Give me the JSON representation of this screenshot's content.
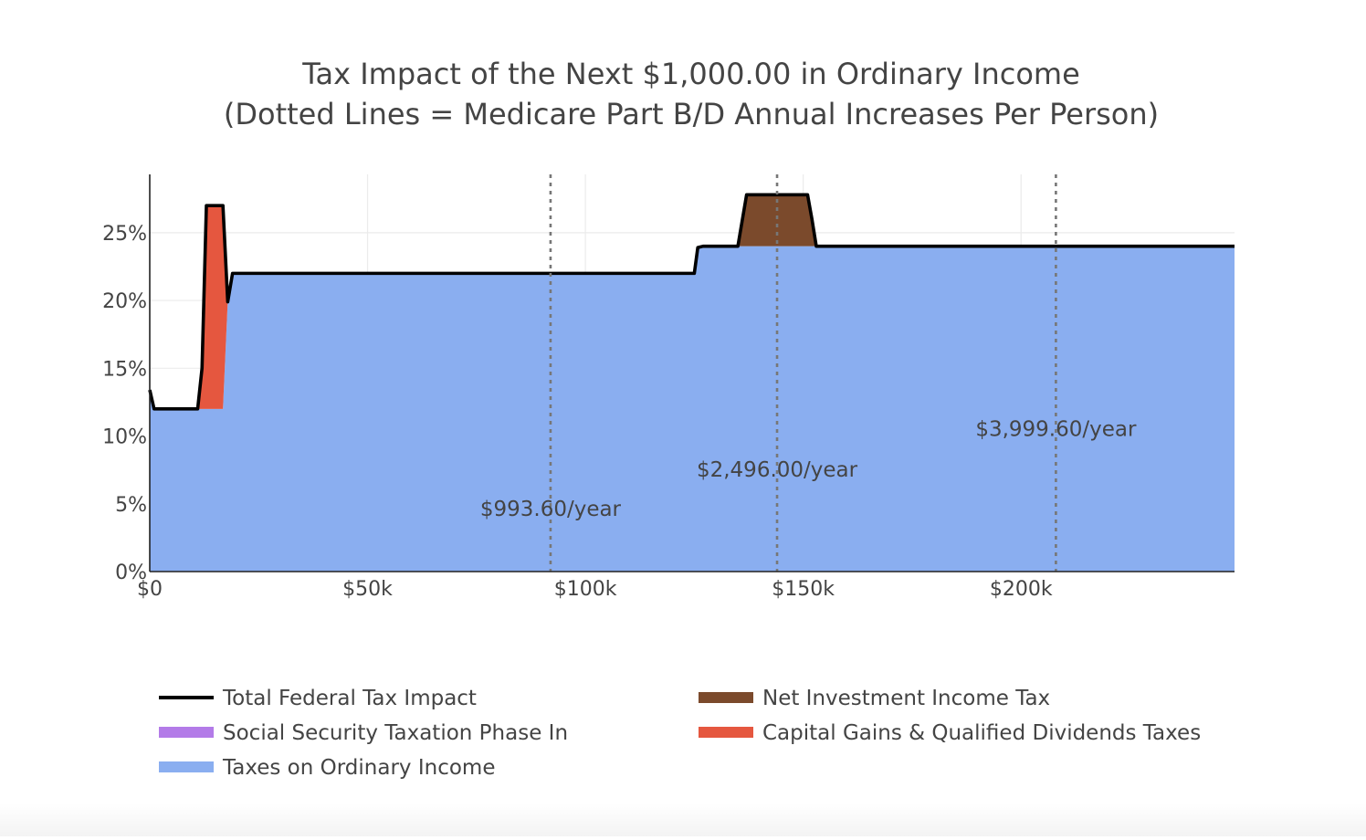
{
  "chart_data": {
    "type": "area",
    "title": "Tax Impact of the Next $1,000.00 in Ordinary Income",
    "subtitle": "(Dotted Lines = Medicare Part B/D Annual Increases Per Person)",
    "xlabel": "",
    "ylabel": "",
    "xlim": [
      0,
      249000
    ],
    "ylim": [
      0,
      29.3
    ],
    "x_ticks": [
      {
        "value": 0,
        "label": "$0"
      },
      {
        "value": 50000,
        "label": "$50k"
      },
      {
        "value": 100000,
        "label": "$100k"
      },
      {
        "value": 150000,
        "label": "$150k"
      },
      {
        "value": 200000,
        "label": "$200k"
      }
    ],
    "y_ticks": [
      {
        "value": 0,
        "label": "0%"
      },
      {
        "value": 5,
        "label": "5%"
      },
      {
        "value": 10,
        "label": "10%"
      },
      {
        "value": 15,
        "label": "15%"
      },
      {
        "value": 20,
        "label": "20%"
      },
      {
        "value": 25,
        "label": "25%"
      }
    ],
    "grid": true,
    "legend_position": "bottom",
    "series": [
      {
        "name": "Taxes on Ordinary Income",
        "kind": "area",
        "color": "#8aaef0",
        "points": [
          [
            0,
            13.4
          ],
          [
            1000,
            12
          ],
          [
            11000,
            12
          ],
          [
            12000,
            12
          ],
          [
            16800,
            12
          ],
          [
            17900,
            19.9
          ],
          [
            19000,
            22
          ],
          [
            20000,
            22
          ],
          [
            125000,
            22
          ],
          [
            125800,
            23.9
          ],
          [
            127000,
            24
          ],
          [
            249000,
            24
          ]
        ]
      },
      {
        "name": "Capital Gains & Qualified Dividends Taxes",
        "kind": "band",
        "color": "#e5573f",
        "points": [
          [
            11000,
            12,
            12
          ],
          [
            12000,
            12,
            15
          ],
          [
            13000,
            12,
            27
          ],
          [
            16800,
            12,
            27
          ],
          [
            17900,
            19.9,
            19.9
          ]
        ]
      },
      {
        "name": "Net Investment Income Tax",
        "kind": "band",
        "color": "#7b4a2c",
        "points": [
          [
            135000,
            24,
            24
          ],
          [
            137000,
            24,
            27.8
          ],
          [
            151000,
            24,
            27.8
          ],
          [
            152000,
            24,
            26
          ],
          [
            153000,
            24,
            24
          ]
        ]
      },
      {
        "name": "Social Security Taxation Phase In",
        "kind": "legend-only",
        "color": "#b37be8",
        "points": []
      },
      {
        "name": "Total Federal Tax Impact",
        "kind": "line",
        "color": "#000000",
        "points": [
          [
            0,
            13.4
          ],
          [
            1000,
            12
          ],
          [
            11000,
            12
          ],
          [
            12000,
            15
          ],
          [
            13000,
            27
          ],
          [
            16800,
            27
          ],
          [
            17900,
            19.9
          ],
          [
            19000,
            22
          ],
          [
            20000,
            22
          ],
          [
            125000,
            22
          ],
          [
            125800,
            23.9
          ],
          [
            127000,
            24
          ],
          [
            135000,
            24
          ],
          [
            137000,
            27.8
          ],
          [
            151000,
            27.8
          ],
          [
            152000,
            26
          ],
          [
            153000,
            24
          ],
          [
            249000,
            24
          ]
        ]
      }
    ],
    "medicare_lines": [
      {
        "x": 92000,
        "label": "$993.60/year",
        "label_y": 4.1
      },
      {
        "x": 144000,
        "label": "$2,496.00/year",
        "label_y": 7
      },
      {
        "x": 208000,
        "label": "$3,999.60/year",
        "label_y": 10
      }
    ],
    "legend": {
      "left": [
        {
          "name": "Total Federal Tax Impact",
          "swatch": "line",
          "color": "#000000"
        },
        {
          "name": "Social Security Taxation Phase In",
          "swatch": "fill",
          "color": "#b37be8"
        },
        {
          "name": "Taxes on Ordinary Income",
          "swatch": "fill",
          "color": "#8aaef0"
        }
      ],
      "right": [
        {
          "name": "Net Investment Income Tax",
          "swatch": "fill",
          "color": "#7b4a2c"
        },
        {
          "name": "Capital Gains & Qualified Dividends Taxes",
          "swatch": "fill",
          "color": "#e5573f"
        }
      ]
    }
  }
}
